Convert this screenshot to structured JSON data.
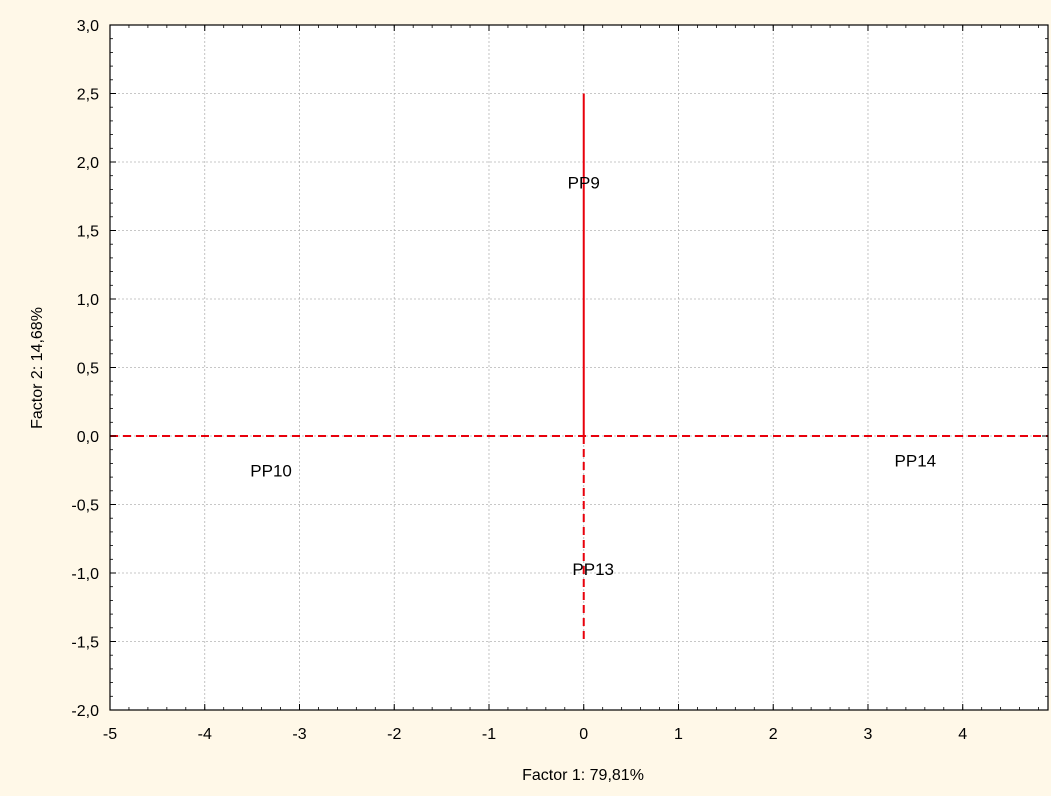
{
  "chart_data": {
    "type": "scatter",
    "title": "",
    "xlabel": "Factor 1: 79,81%",
    "ylabel": "Factor 2: 14,68%",
    "xlim": [
      -5,
      4.9
    ],
    "ylim": [
      -2.0,
      3.0
    ],
    "x_ticks": [
      -5,
      -4,
      -3,
      -2,
      -1,
      0,
      1,
      2,
      3,
      4
    ],
    "x_tick_labels": [
      "-5",
      "-4",
      "-3",
      "-2",
      "-1",
      "0",
      "1",
      "2",
      "3",
      "4"
    ],
    "y_ticks": [
      -2.0,
      -1.5,
      -1.0,
      -0.5,
      0.0,
      0.5,
      1.0,
      1.5,
      2.0,
      2.5,
      3.0
    ],
    "y_tick_labels": [
      "-2,0",
      "-1,5",
      "-1,0",
      "-0,5",
      "0,0",
      "0,5",
      "1,0",
      "1,5",
      "2,0",
      "2,5",
      "3,0"
    ],
    "grid": true,
    "points": [
      {
        "label": "PP9",
        "x": 0.0,
        "y": 1.85
      },
      {
        "label": "PP10",
        "x": -3.3,
        "y": -0.25
      },
      {
        "label": "PP13",
        "x": 0.1,
        "y": -0.97
      },
      {
        "label": "PP14",
        "x": 3.5,
        "y": -0.18
      }
    ],
    "reference_lines": [
      {
        "orientation": "vertical",
        "x": 0,
        "from": 0,
        "to": 2.5,
        "style": "solid",
        "color": "#e8000b"
      },
      {
        "orientation": "vertical",
        "x": 0,
        "from": -1.5,
        "to": 0,
        "style": "dashed",
        "color": "#e8000b"
      },
      {
        "orientation": "horizontal",
        "y": 0,
        "from": -5,
        "to": 4.9,
        "style": "dashed",
        "color": "#e8000b"
      }
    ],
    "colors": {
      "background": "#fff8e8",
      "plot_area": "#ffffff",
      "grid": "#b5b5b5",
      "reference": "#e8000b"
    }
  }
}
